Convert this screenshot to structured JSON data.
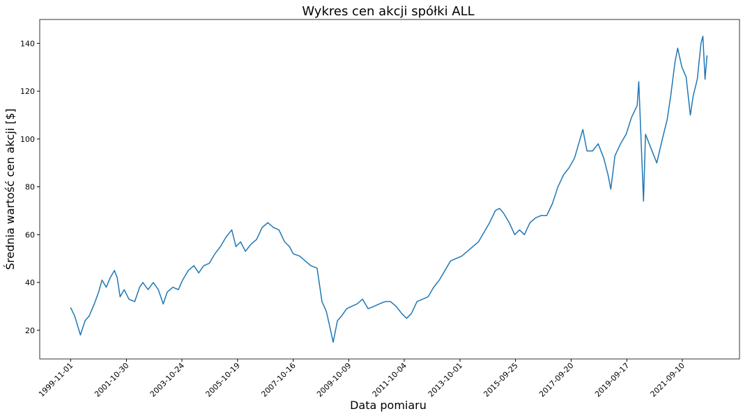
{
  "chart_data": {
    "type": "line",
    "title": "Wykres cen akcji spółki ALL",
    "x_label": "Data pomiaru",
    "y_label": "Średnia wartość cen akcji [$]",
    "x": [
      "1999-11-01",
      "1999-12-24",
      "2000-03-08",
      "2000-05-08",
      "2000-07-01",
      "2000-09-05",
      "2000-11-01",
      "2000-12-15",
      "2001-02-08",
      "2001-04-01",
      "2001-05-26",
      "2001-07-01",
      "2001-08-08",
      "2001-10-01",
      "2001-12-01",
      "2002-02-15",
      "2002-04-20",
      "2002-06-01",
      "2002-08-08",
      "2002-10-15",
      "2002-12-20",
      "2003-02-22",
      "2003-04-15",
      "2003-06-28",
      "2003-09-08",
      "2003-11-02",
      "2004-01-15",
      "2004-03-28",
      "2004-05-30",
      "2004-08-03",
      "2004-10-15",
      "2004-12-28",
      "2005-03-10",
      "2005-05-22",
      "2005-08-05",
      "2005-09-28",
      "2005-11-28",
      "2006-01-30",
      "2006-04-12",
      "2006-06-25",
      "2006-09-05",
      "2006-11-18",
      "2007-01-30",
      "2007-04-12",
      "2007-06-25",
      "2007-08-28",
      "2007-10-16",
      "2008-01-08",
      "2008-03-20",
      "2008-06-01",
      "2008-08-22",
      "2008-10-25",
      "2008-12-20",
      "2009-01-25",
      "2009-03-20",
      "2009-05-15",
      "2009-07-08",
      "2009-09-12",
      "2009-11-15",
      "2010-01-25",
      "2010-04-08",
      "2010-06-20",
      "2010-09-01",
      "2010-11-12",
      "2011-01-25",
      "2011-04-08",
      "2011-06-20",
      "2011-09-01",
      "2011-11-04",
      "2012-01-05",
      "2012-03-18",
      "2012-05-30",
      "2012-08-10",
      "2012-10-22",
      "2013-01-04",
      "2013-03-18",
      "2013-05-30",
      "2013-08-10",
      "2013-10-22",
      "2014-01-04",
      "2014-03-18",
      "2014-05-30",
      "2014-08-10",
      "2014-10-22",
      "2015-01-04",
      "2015-02-28",
      "2015-04-22",
      "2015-07-05",
      "2015-09-15",
      "2015-11-17",
      "2016-01-19",
      "2016-04-01",
      "2016-06-13",
      "2016-08-25",
      "2016-11-06",
      "2017-01-19",
      "2017-04-01",
      "2017-06-13",
      "2017-08-25",
      "2017-11-03",
      "2017-12-28",
      "2018-02-20",
      "2018-04-15",
      "2018-06-27",
      "2018-09-08",
      "2018-11-20",
      "2019-01-15",
      "2019-02-20",
      "2019-04-15",
      "2019-06-27",
      "2019-09-08",
      "2019-11-17",
      "2020-01-30",
      "2020-02-20",
      "2020-04-22",
      "2020-05-18",
      "2020-07-30",
      "2020-10-12",
      "2020-12-24",
      "2021-02-24",
      "2021-04-12",
      "2021-06-06",
      "2021-07-12",
      "2021-09-05",
      "2021-10-30",
      "2021-12-24",
      "2022-01-30",
      "2022-03-25",
      "2022-05-12",
      "2022-06-06",
      "2022-07-04",
      "2022-07-30"
    ],
    "series": [
      {
        "color": "#1f77b4",
        "values": [
          29.5,
          26,
          18,
          24,
          26,
          31,
          36,
          41,
          38,
          42,
          45,
          42,
          34,
          37,
          33,
          32,
          38,
          40,
          37,
          40,
          37,
          31,
          36,
          38,
          37,
          41,
          45,
          47,
          44,
          47,
          48,
          52,
          55,
          59,
          62,
          55,
          57,
          53,
          56,
          58,
          63,
          65,
          63,
          62,
          57,
          55,
          52,
          51,
          49,
          47,
          46,
          32,
          28,
          23,
          15,
          24,
          26,
          29,
          30,
          31,
          33,
          29,
          30,
          31,
          32,
          32,
          30,
          27,
          25,
          27,
          32,
          33,
          34,
          38,
          41,
          45,
          49,
          50,
          51,
          53,
          55,
          57,
          61,
          65,
          70,
          71,
          69,
          65,
          60,
          62,
          60,
          65,
          67,
          68,
          68,
          73,
          80,
          85,
          88,
          92,
          98,
          104,
          95,
          95,
          98,
          92,
          85,
          79,
          93,
          98,
          102,
          109,
          114,
          124,
          74,
          102,
          96,
          90,
          100,
          108,
          118,
          132,
          138,
          130,
          126,
          110,
          118,
          125,
          140,
          143,
          125,
          135
        ]
      }
    ],
    "xlim": [
      "1998-09-24",
      "2023-09-27"
    ],
    "ylim": [
      8,
      150
    ],
    "xticks": [
      "1999-11-01",
      "2001-10-30",
      "2003-10-24",
      "2005-10-19",
      "2007-10-16",
      "2009-10-09",
      "2011-10-04",
      "2013-10-01",
      "2015-09-25",
      "2017-09-20",
      "2019-09-17",
      "2021-09-10"
    ],
    "yticks": [
      20,
      40,
      60,
      80,
      100,
      120,
      140
    ],
    "grid": false
  }
}
